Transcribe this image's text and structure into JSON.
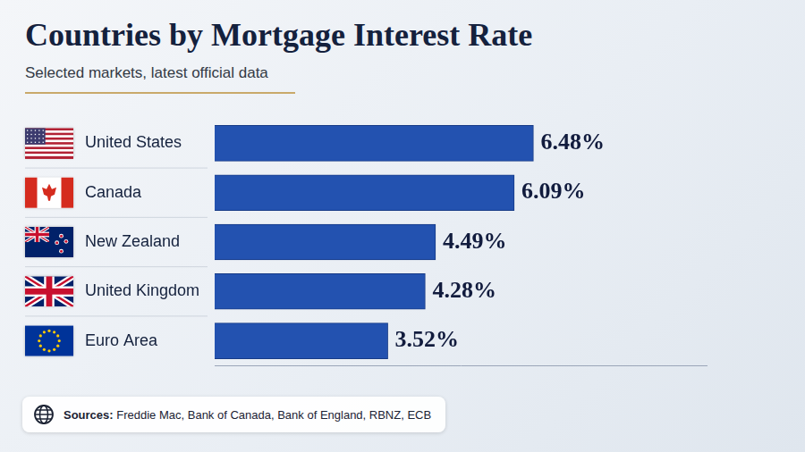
{
  "chart_data": {
    "type": "bar",
    "orientation": "horizontal",
    "title": "Countries by Mortgage Interest Rate",
    "subtitle": "Selected markets, latest official data",
    "categories": [
      "United States",
      "Canada",
      "New Zealand",
      "United Kingdom",
      "Euro Area"
    ],
    "values": [
      6.48,
      6.09,
      4.49,
      4.28,
      3.52
    ],
    "value_labels": [
      "6.48%",
      "6.09%",
      "4.49%",
      "4.28%",
      "3.52%"
    ],
    "data_labels": true,
    "color": "#2352b0",
    "xlim": [
      0,
      10
    ],
    "grid": false,
    "tick_labels": "y",
    "note": "Sources: Freddie Mac, Bank of Canada, Bank of England, RBNZ, ECB"
  }
}
